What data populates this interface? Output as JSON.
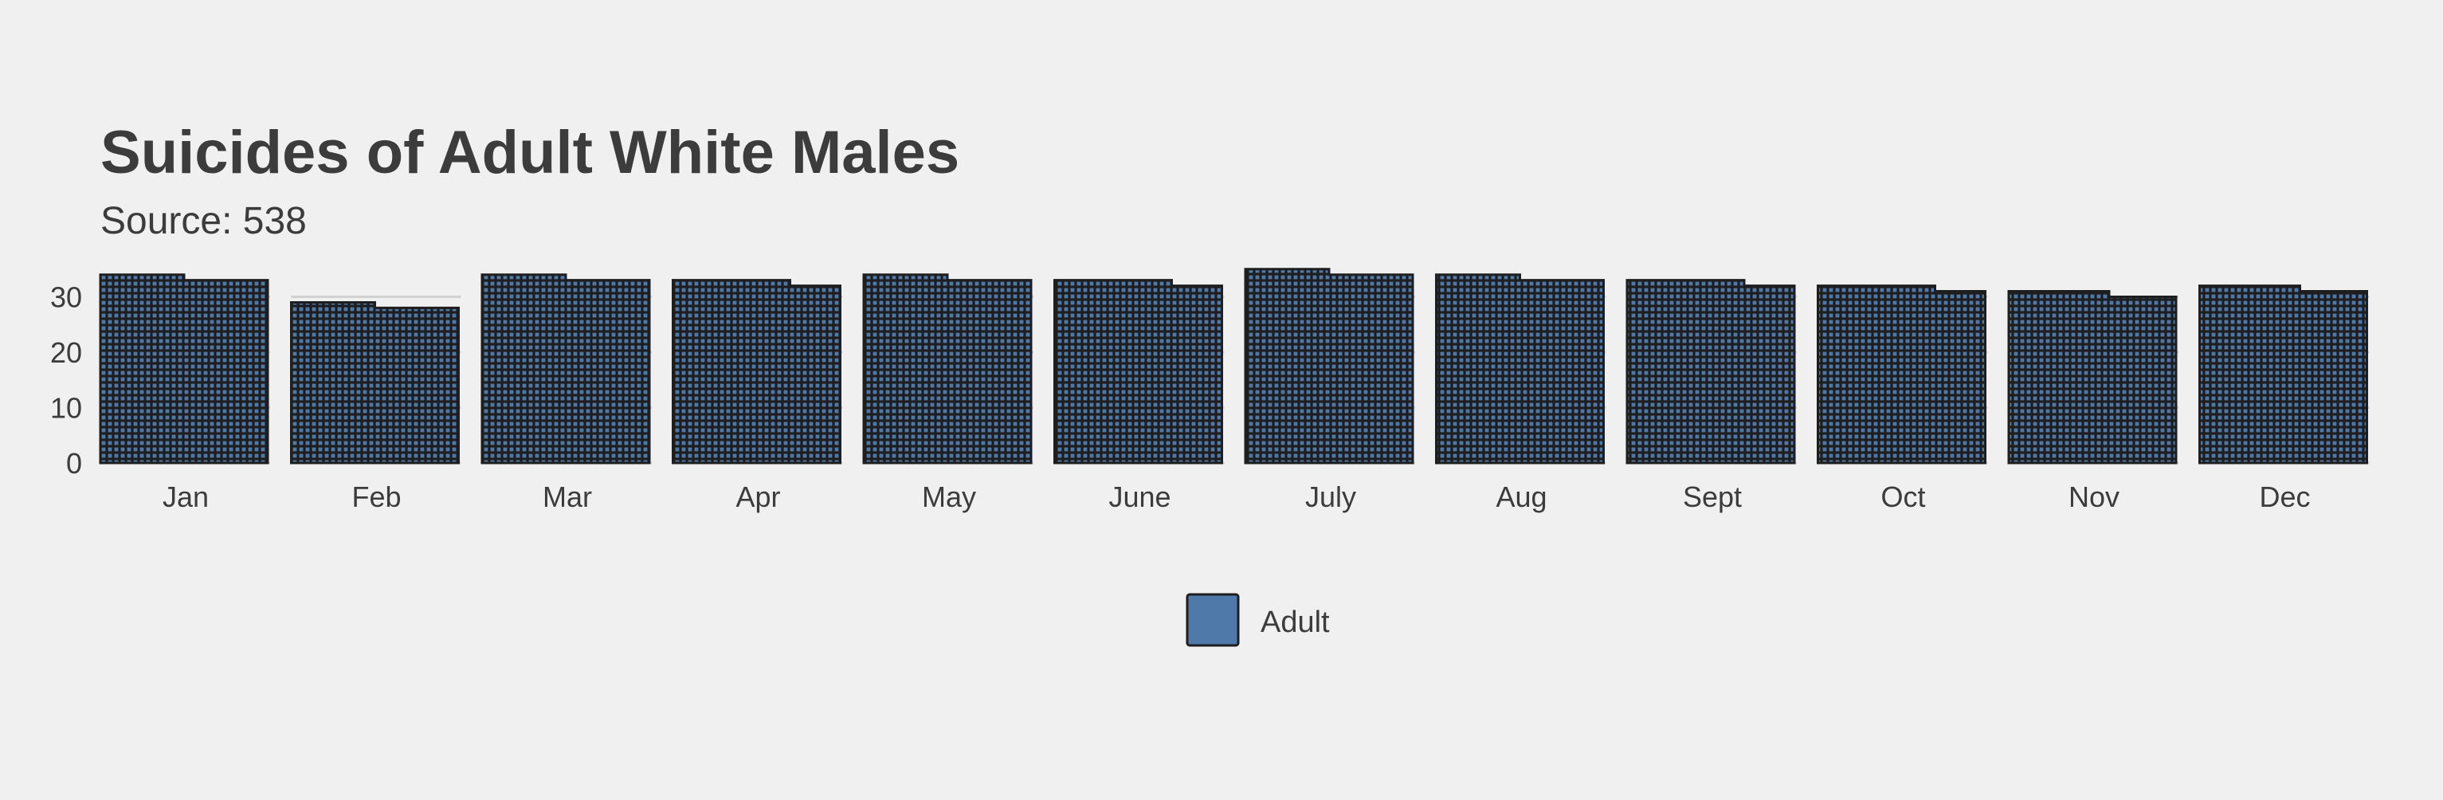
{
  "chart_data": {
    "type": "bar",
    "title": "Suicides of Adult White Males",
    "subtitle": "Source: 538",
    "xlabel": "",
    "ylabel": "",
    "categories": [
      "Jan",
      "Feb",
      "Mar",
      "Apr",
      "May",
      "June",
      "July",
      "Aug",
      "Sept",
      "Oct",
      "Nov",
      "Dec"
    ],
    "series": [
      {
        "name": "Adult",
        "values": [
          33.5,
          28.5,
          33.5,
          32.7,
          33.5,
          32.7,
          34.5,
          33.5,
          32.7,
          31.7,
          30.6,
          31.6
        ]
      }
    ],
    "ylim": [
      0,
      35
    ],
    "yticks": [
      0,
      10,
      20,
      30
    ],
    "grid": true,
    "legend_position": "bottom",
    "colors": {
      "bar_fill": "#4f79a8",
      "bar_grid": "#1e1e1e",
      "background": "#f0f0f0",
      "gridline": "#d2d2d2",
      "text": "#3c3c3c"
    }
  }
}
